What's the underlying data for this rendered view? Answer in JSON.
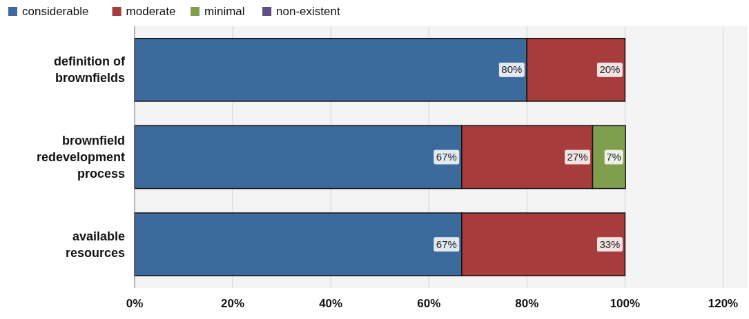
{
  "chart_data": {
    "type": "bar",
    "orientation": "horizontal",
    "stacked": true,
    "legend": "top left",
    "grid": "x",
    "categories": [
      "definition of brownfields",
      "brownfield redevelopment process",
      "available resources"
    ],
    "series": [
      {
        "name": "considerable",
        "color": "#3d6a9c",
        "values": [
          80,
          66.7,
          66.7
        ],
        "value_labels": [
          "80%",
          "67%",
          "67%"
        ]
      },
      {
        "name": "moderate",
        "color": "#a63c3c",
        "values": [
          20,
          26.7,
          33.3
        ],
        "value_labels": [
          "20%",
          "27%",
          "33%"
        ]
      },
      {
        "name": "minimal",
        "color": "#7f9f4f",
        "values": [
          0,
          6.7,
          0
        ],
        "value_labels": [
          null,
          "7%",
          null
        ]
      },
      {
        "name": "non-existent",
        "color": "#5e5080",
        "values": [
          0,
          0,
          0
        ],
        "value_labels": [
          null,
          null,
          null
        ]
      }
    ],
    "xlim": [
      0,
      125
    ],
    "xticks": [
      {
        "value": 0,
        "label": "0%"
      },
      {
        "value": 20,
        "label": "20%"
      },
      {
        "value": 40,
        "label": "40%"
      },
      {
        "value": 60,
        "label": "60%"
      },
      {
        "value": 80,
        "label": "80%"
      },
      {
        "value": 100,
        "label": "100%"
      },
      {
        "value": 120,
        "label": "120%"
      }
    ]
  }
}
